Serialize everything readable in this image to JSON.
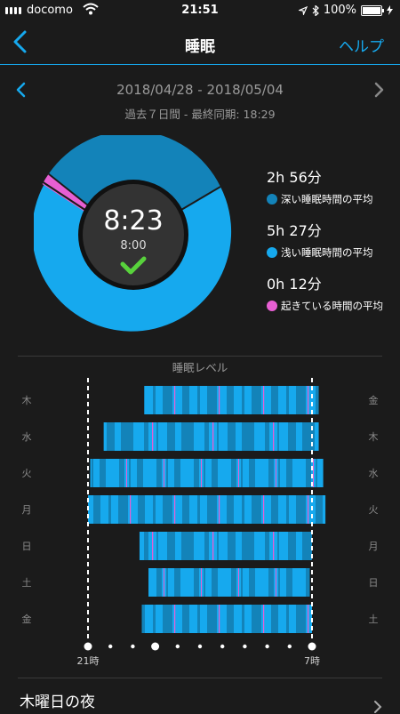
{
  "status": {
    "carrier": "docomo",
    "time": "21:51",
    "battery": "100%"
  },
  "nav": {
    "title": "睡眠",
    "help": "ヘルプ"
  },
  "range": {
    "dates": "2018/04/28 - 2018/05/04",
    "sync": "過去７日間 - 最終同期: 18:29"
  },
  "summary": {
    "time": "8:23",
    "goal": "8:00",
    "legend": [
      {
        "value": "2h 56分",
        "label": "深い睡眠時間の平均",
        "color": "#1383b9"
      },
      {
        "value": "5h 27分",
        "label": "浅い睡眠時間の平均",
        "color": "#16a9ee"
      },
      {
        "value": "0h 12分",
        "label": "起きている時間の平均",
        "color": "#e75fd3"
      }
    ]
  },
  "colors": {
    "deep": "#1383b9",
    "light": "#16a9ee",
    "awake": "#e75fd3",
    "check": "#58d23c"
  },
  "chart_data": {
    "type": "timeline",
    "title": "睡眠レベル",
    "x_tick_labels": [
      "21時",
      "7時"
    ],
    "rows": [
      {
        "left": "木",
        "right": "金",
        "start": 23.5,
        "end": 31.3
      },
      {
        "left": "水",
        "right": "木",
        "start": 21.7,
        "end": 31.3
      },
      {
        "left": "火",
        "right": "水",
        "start": 21.1,
        "end": 31.5
      },
      {
        "left": "月",
        "right": "火",
        "start": 21.0,
        "end": 31.6
      },
      {
        "left": "日",
        "right": "月",
        "start": 23.3,
        "end": 31.0
      },
      {
        "left": "土",
        "right": "日",
        "start": 23.7,
        "end": 30.9
      },
      {
        "left": "金",
        "right": "土",
        "start": 23.4,
        "end": 31.0
      }
    ]
  },
  "footer": {
    "label": "木曜日の夜"
  }
}
